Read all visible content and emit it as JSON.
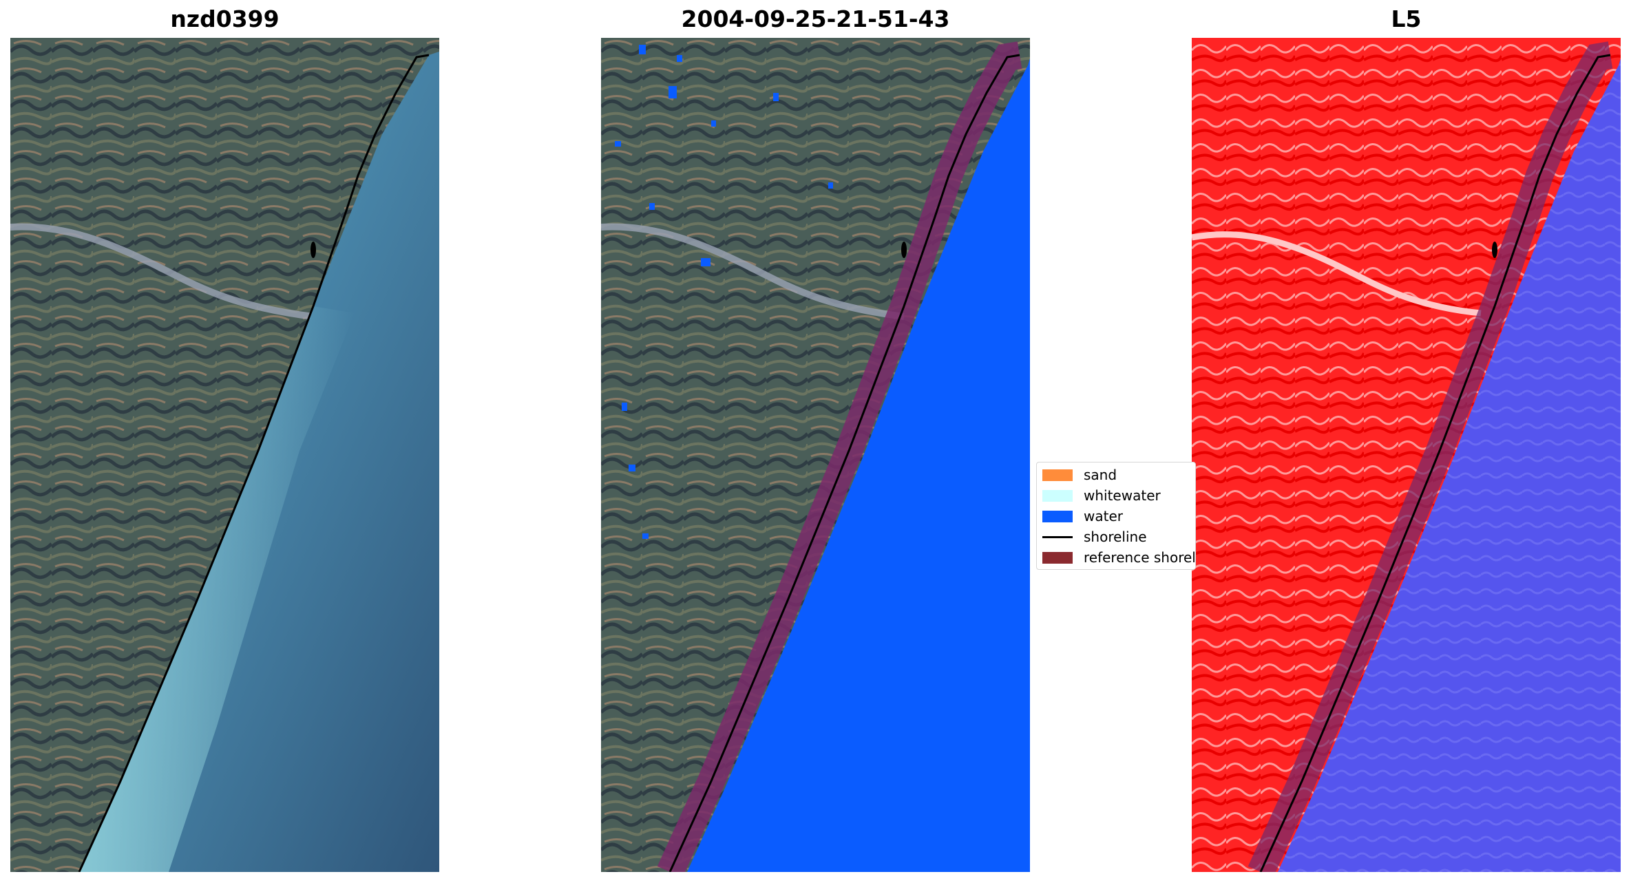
{
  "panels": [
    {
      "title": "nzd0399"
    },
    {
      "title": "2004-09-25-21-51-43"
    },
    {
      "title": "L5"
    }
  ],
  "legend": {
    "items": [
      {
        "label": "sand",
        "color": "#ff8c3a",
        "kind": "patch"
      },
      {
        "label": "whitewater",
        "color": "#ccffff",
        "kind": "patch"
      },
      {
        "label": "water",
        "color": "#0a5cff",
        "kind": "patch"
      },
      {
        "label": "shoreline",
        "color": "#000000",
        "kind": "line"
      },
      {
        "label": "reference shoreline",
        "color": "#8b2a2f",
        "kind": "patch"
      }
    ]
  },
  "colors": {
    "land_rgb": "#4a5e58",
    "sea_rgb": "#35607f",
    "water_class": "#0a5cff",
    "reference_buffer": "#7a2a6a",
    "index_land": "#ff2020",
    "index_water": "#5555ee"
  }
}
